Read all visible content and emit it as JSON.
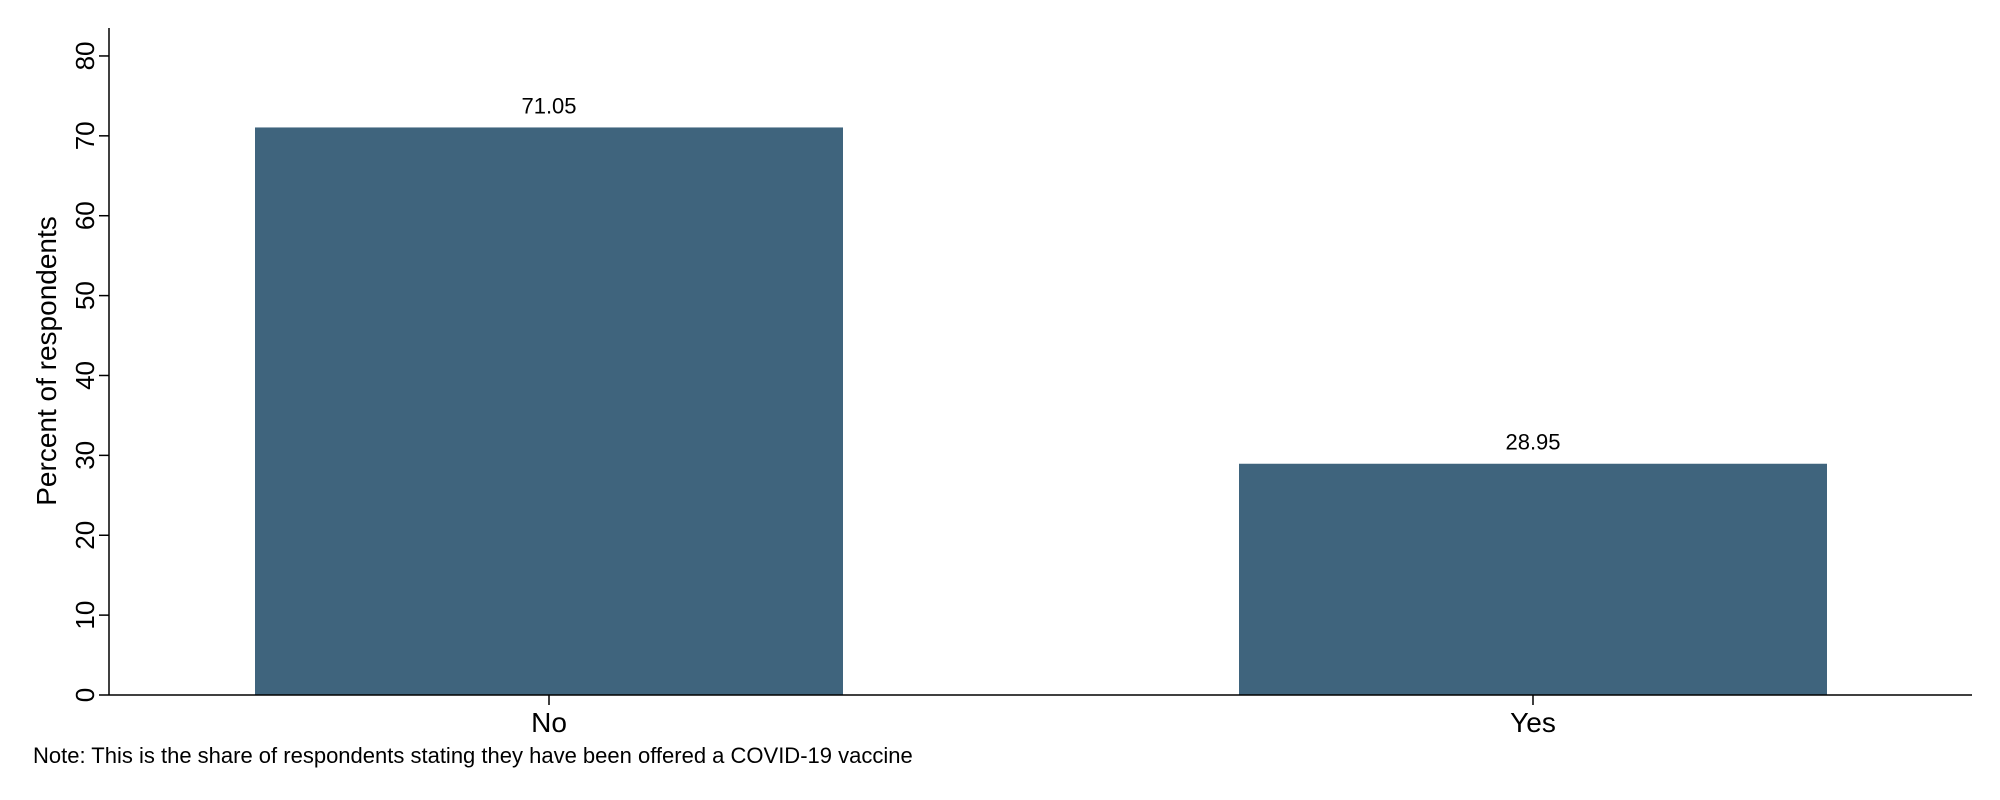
{
  "chart_data": {
    "type": "bar",
    "categories": [
      "No",
      "Yes"
    ],
    "values": [
      71.05,
      28.95
    ],
    "value_labels": [
      "71.05",
      "28.95"
    ],
    "title": "",
    "xlabel": "",
    "ylabel": "Percent of respondents",
    "ylim": [
      0,
      83.5
    ],
    "yticks": [
      0,
      10,
      20,
      30,
      40,
      50,
      60,
      70,
      80
    ],
    "grid": false,
    "bar_color": "#3f647d",
    "note": "Note: This is the share of respondents stating they have been offered a COVID-19 vaccine"
  }
}
